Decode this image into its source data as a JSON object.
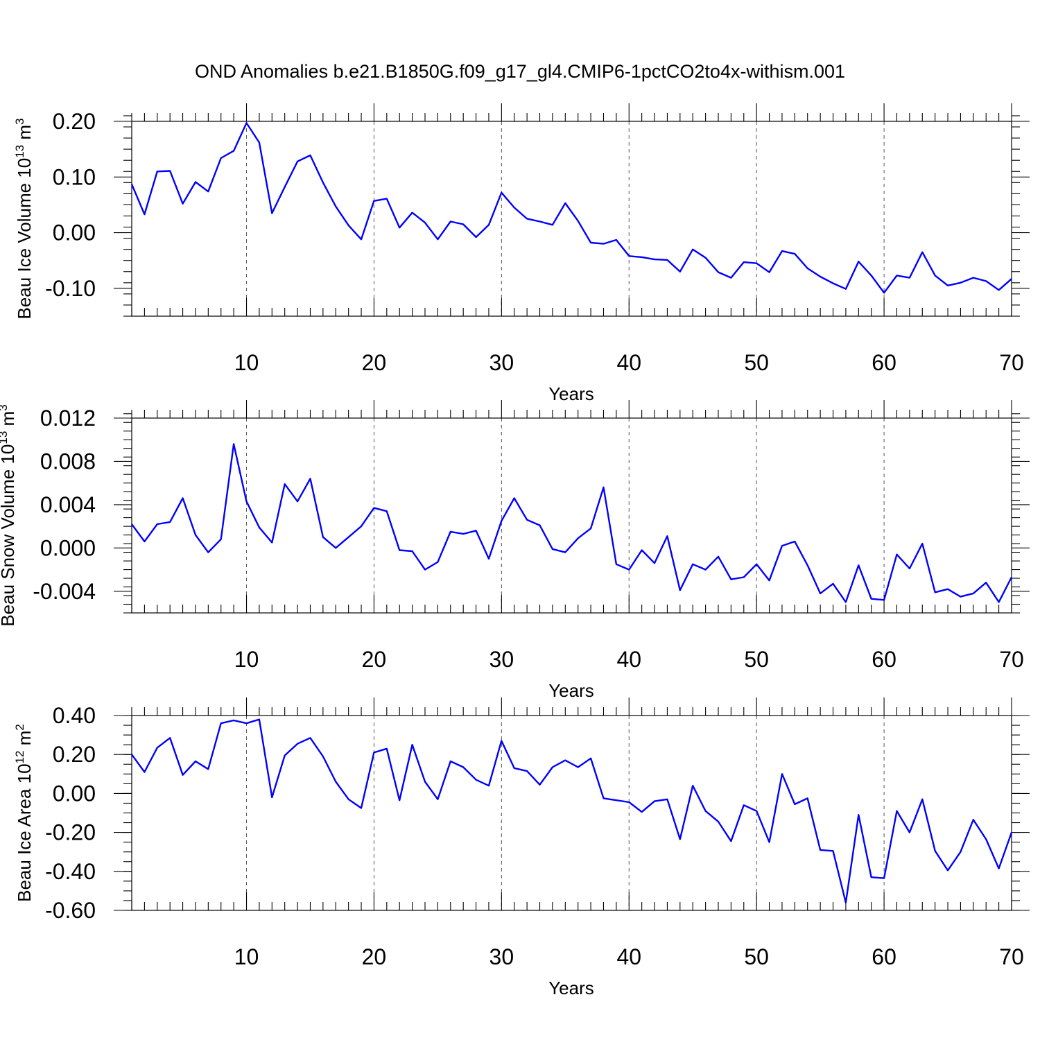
{
  "title": "OND Anomalies b.e21.B1850G.f09_g17_gl4.CMIP6-1pctCO2to4x-withism.001",
  "colors": {
    "series": "#0000ff",
    "grid": "#555555",
    "axis": "#000000"
  },
  "chart_data": [
    {
      "type": "line",
      "ylabel": "Beau Ice Volume",
      "ylabel_unit": "10",
      "ylabel_exp": "13",
      "ylabel_unit2": "m",
      "ylabel_exp2": "3",
      "xlabel": "Years",
      "xlim": [
        1,
        70
      ],
      "ylim": [
        -0.15,
        0.2
      ],
      "x_ticks": [
        10,
        20,
        30,
        40,
        50,
        60,
        70
      ],
      "x_tick_labels": [
        "10",
        "20",
        "30",
        "40",
        "50",
        "60",
        "70"
      ],
      "y_ticks": [
        -0.1,
        0.0,
        0.1,
        0.2
      ],
      "y_tick_labels": [
        "-0.10",
        "0.00",
        "0.10",
        "0.20"
      ],
      "y_minor_step": 0.02,
      "grid": "vertical dashed at major x ticks",
      "series": [
        {
          "values": [
            0.087,
            0.033,
            0.11,
            0.111,
            0.052,
            0.091,
            0.074,
            0.134,
            0.147,
            0.197,
            0.162,
            0.035,
            0.082,
            0.128,
            0.139,
            0.09,
            0.047,
            0.013,
            -0.012,
            0.057,
            0.061,
            0.009,
            0.036,
            0.018,
            -0.012,
            0.02,
            0.015,
            -0.008,
            0.014,
            0.072,
            0.045,
            0.025,
            0.02,
            0.014,
            0.053,
            0.021,
            -0.018,
            -0.02,
            -0.013,
            -0.042,
            -0.044,
            -0.048,
            -0.049,
            -0.07,
            -0.03,
            -0.045,
            -0.071,
            -0.081,
            -0.053,
            -0.055,
            -0.071,
            -0.033,
            -0.038,
            -0.064,
            -0.079,
            -0.091,
            -0.101,
            -0.052,
            -0.077,
            -0.108,
            -0.077,
            -0.081,
            -0.035,
            -0.077,
            -0.095,
            -0.09,
            -0.081,
            -0.087,
            -0.103,
            -0.083
          ]
        }
      ]
    },
    {
      "type": "line",
      "ylabel": "Beau Snow Volume",
      "ylabel_unit": "10",
      "ylabel_exp": "13",
      "ylabel_unit2": "m",
      "ylabel_exp2": "3",
      "xlabel": "Years",
      "xlim": [
        1,
        70
      ],
      "ylim": [
        -0.006,
        0.012
      ],
      "x_ticks": [
        10,
        20,
        30,
        40,
        50,
        60,
        70
      ],
      "x_tick_labels": [
        "10",
        "20",
        "30",
        "40",
        "50",
        "60",
        "70"
      ],
      "y_ticks": [
        -0.004,
        0.0,
        0.004,
        0.008,
        0.012
      ],
      "y_tick_labels": [
        "-0.004",
        "0.000",
        "0.004",
        "0.008",
        "0.012"
      ],
      "y_minor_step": 0.0008,
      "grid": "vertical dashed at major x ticks",
      "series": [
        {
          "values": [
            0.0022,
            0.0006,
            0.0022,
            0.0024,
            0.0046,
            0.0012,
            -0.0004,
            0.0008,
            0.0096,
            0.0043,
            0.0019,
            0.0005,
            0.0059,
            0.0043,
            0.0064,
            0.001,
            0.0,
            0.001,
            0.002,
            0.0037,
            0.0034,
            -0.0002,
            -0.0003,
            -0.002,
            -0.0013,
            0.0015,
            0.0013,
            0.0016,
            -0.001,
            0.0025,
            0.0046,
            0.0026,
            0.0021,
            -0.0001,
            -0.0004,
            0.0009,
            0.0018,
            0.0056,
            -0.0015,
            -0.002,
            -0.0002,
            -0.0014,
            0.0011,
            -0.0039,
            -0.0015,
            -0.002,
            -0.0008,
            -0.0029,
            -0.0027,
            -0.0015,
            -0.003,
            0.0002,
            0.0006,
            -0.0016,
            -0.0042,
            -0.0033,
            -0.005,
            -0.0016,
            -0.0047,
            -0.0048,
            -0.0006,
            -0.0019,
            0.0004,
            -0.0041,
            -0.0038,
            -0.0045,
            -0.0042,
            -0.0032,
            -0.005,
            -0.0027
          ]
        }
      ]
    },
    {
      "type": "line",
      "ylabel": "Beau Ice Area",
      "ylabel_unit": "10",
      "ylabel_exp": "12",
      "ylabel_unit2": "m",
      "ylabel_exp2": "2",
      "xlabel": "Years",
      "xlim": [
        1,
        70
      ],
      "ylim": [
        -0.6,
        0.4
      ],
      "x_ticks": [
        10,
        20,
        30,
        40,
        50,
        60,
        70
      ],
      "x_tick_labels": [
        "10",
        "20",
        "30",
        "40",
        "50",
        "60",
        "70"
      ],
      "y_ticks": [
        -0.6,
        -0.4,
        -0.2,
        0.0,
        0.2,
        0.4
      ],
      "y_tick_labels": [
        "-0.60",
        "-0.40",
        "-0.20",
        "0.00",
        "0.20",
        "0.40"
      ],
      "y_minor_step": 0.05,
      "grid": "vertical dashed at major x ticks",
      "series": [
        {
          "values": [
            0.2,
            0.11,
            0.235,
            0.285,
            0.095,
            0.165,
            0.125,
            0.36,
            0.375,
            0.36,
            0.38,
            -0.02,
            0.195,
            0.255,
            0.285,
            0.19,
            0.06,
            -0.03,
            -0.075,
            0.21,
            0.23,
            -0.035,
            0.25,
            0.06,
            -0.03,
            0.165,
            0.135,
            0.07,
            0.04,
            0.27,
            0.13,
            0.115,
            0.045,
            0.135,
            0.17,
            0.135,
            0.18,
            -0.025,
            -0.035,
            -0.045,
            -0.095,
            -0.04,
            -0.03,
            -0.235,
            0.04,
            -0.09,
            -0.145,
            -0.245,
            -0.06,
            -0.09,
            -0.25,
            0.1,
            -0.055,
            -0.025,
            -0.29,
            -0.295,
            -0.56,
            -0.11,
            -0.43,
            -0.435,
            -0.09,
            -0.2,
            -0.03,
            -0.295,
            -0.395,
            -0.3,
            -0.135,
            -0.235,
            -0.385,
            -0.2
          ]
        }
      ]
    }
  ]
}
